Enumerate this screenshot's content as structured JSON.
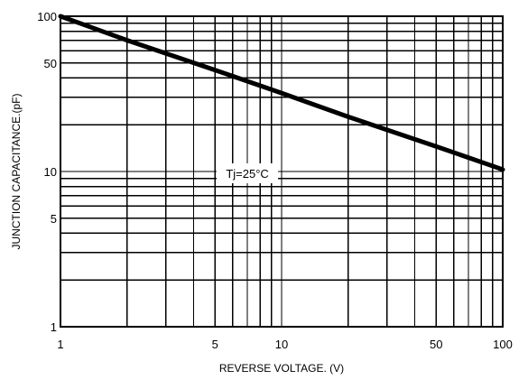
{
  "chart_data": {
    "type": "line",
    "title": "",
    "xlabel": "REVERSE VOLTAGE. (V)",
    "ylabel": "JUNCTION CAPACITANCE.(pF)",
    "xscale": "log",
    "yscale": "log",
    "xlim": [
      1,
      100
    ],
    "ylim": [
      1,
      100
    ],
    "grid": true,
    "x_ticks": [
      {
        "value": 1,
        "label": "1"
      },
      {
        "value": 5,
        "label": "5"
      },
      {
        "value": 10,
        "label": "10"
      },
      {
        "value": 50,
        "label": "50"
      },
      {
        "value": 100,
        "label": "100"
      }
    ],
    "y_ticks": [
      {
        "value": 1,
        "label": "1"
      },
      {
        "value": 5,
        "label": "5"
      },
      {
        "value": 10,
        "label": "10"
      },
      {
        "value": 50,
        "label": "50"
      },
      {
        "value": 100,
        "label": "100"
      }
    ],
    "series": [
      {
        "x": [
          1,
          2,
          5,
          10,
          20,
          50,
          100
        ],
        "y": [
          100,
          70,
          45,
          32,
          22.5,
          14.5,
          10.3
        ]
      }
    ],
    "annotations": [
      {
        "text": "Tj=25°C",
        "x": 7,
        "y": 10
      }
    ]
  }
}
